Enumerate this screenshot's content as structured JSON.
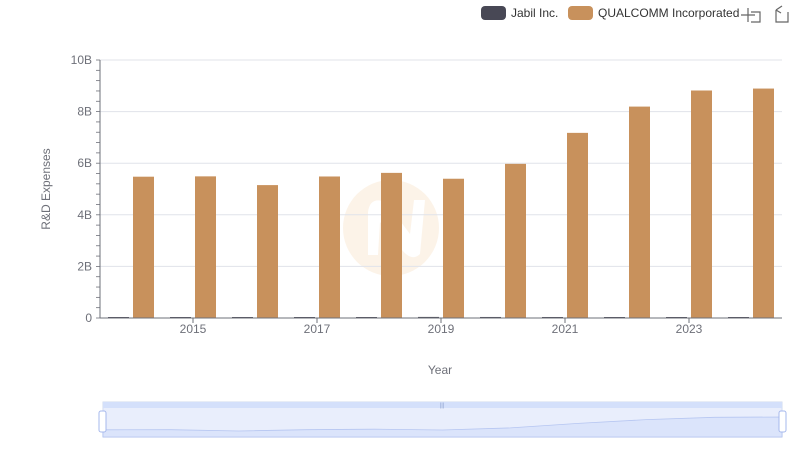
{
  "colors": {
    "jabil": "#484855",
    "qualcomm": "#c8915c",
    "grid": "#e0e3ea",
    "axis": "#6e7079",
    "zoom_fill": "#dfe7fb",
    "zoom_line": "#a6b8ec"
  },
  "toolbox": {
    "icons": [
      "zoom-icon",
      "zoom-reset-icon"
    ]
  },
  "chart_data": {
    "type": "bar",
    "xlabel": "Year",
    "ylabel": "R&D Expenses",
    "x": [
      2014,
      2015,
      2016,
      2017,
      2018,
      2019,
      2020,
      2021,
      2022,
      2023,
      2024
    ],
    "x_tick_labels": [
      "2015",
      "2017",
      "2019",
      "2021",
      "2023"
    ],
    "y_tick_labels": [
      "0",
      "2B",
      "4B",
      "6B",
      "8B",
      "10B"
    ],
    "ylim": [
      0,
      10000000000
    ],
    "grid": true,
    "legend_position": "top-right",
    "series": [
      {
        "name": "Jabil Inc.",
        "values": [
          30000000,
          31000000,
          32000000,
          33000000,
          38000000,
          42000000,
          40000000,
          39000000,
          36000000,
          37000000,
          36000000
        ]
      },
      {
        "name": "QUALCOMM Incorporated",
        "values": [
          5477000000,
          5490000000,
          5151000000,
          5485000000,
          5625000000,
          5398000000,
          5975000000,
          7176000000,
          8194000000,
          8818000000,
          8893000000
        ]
      }
    ]
  }
}
